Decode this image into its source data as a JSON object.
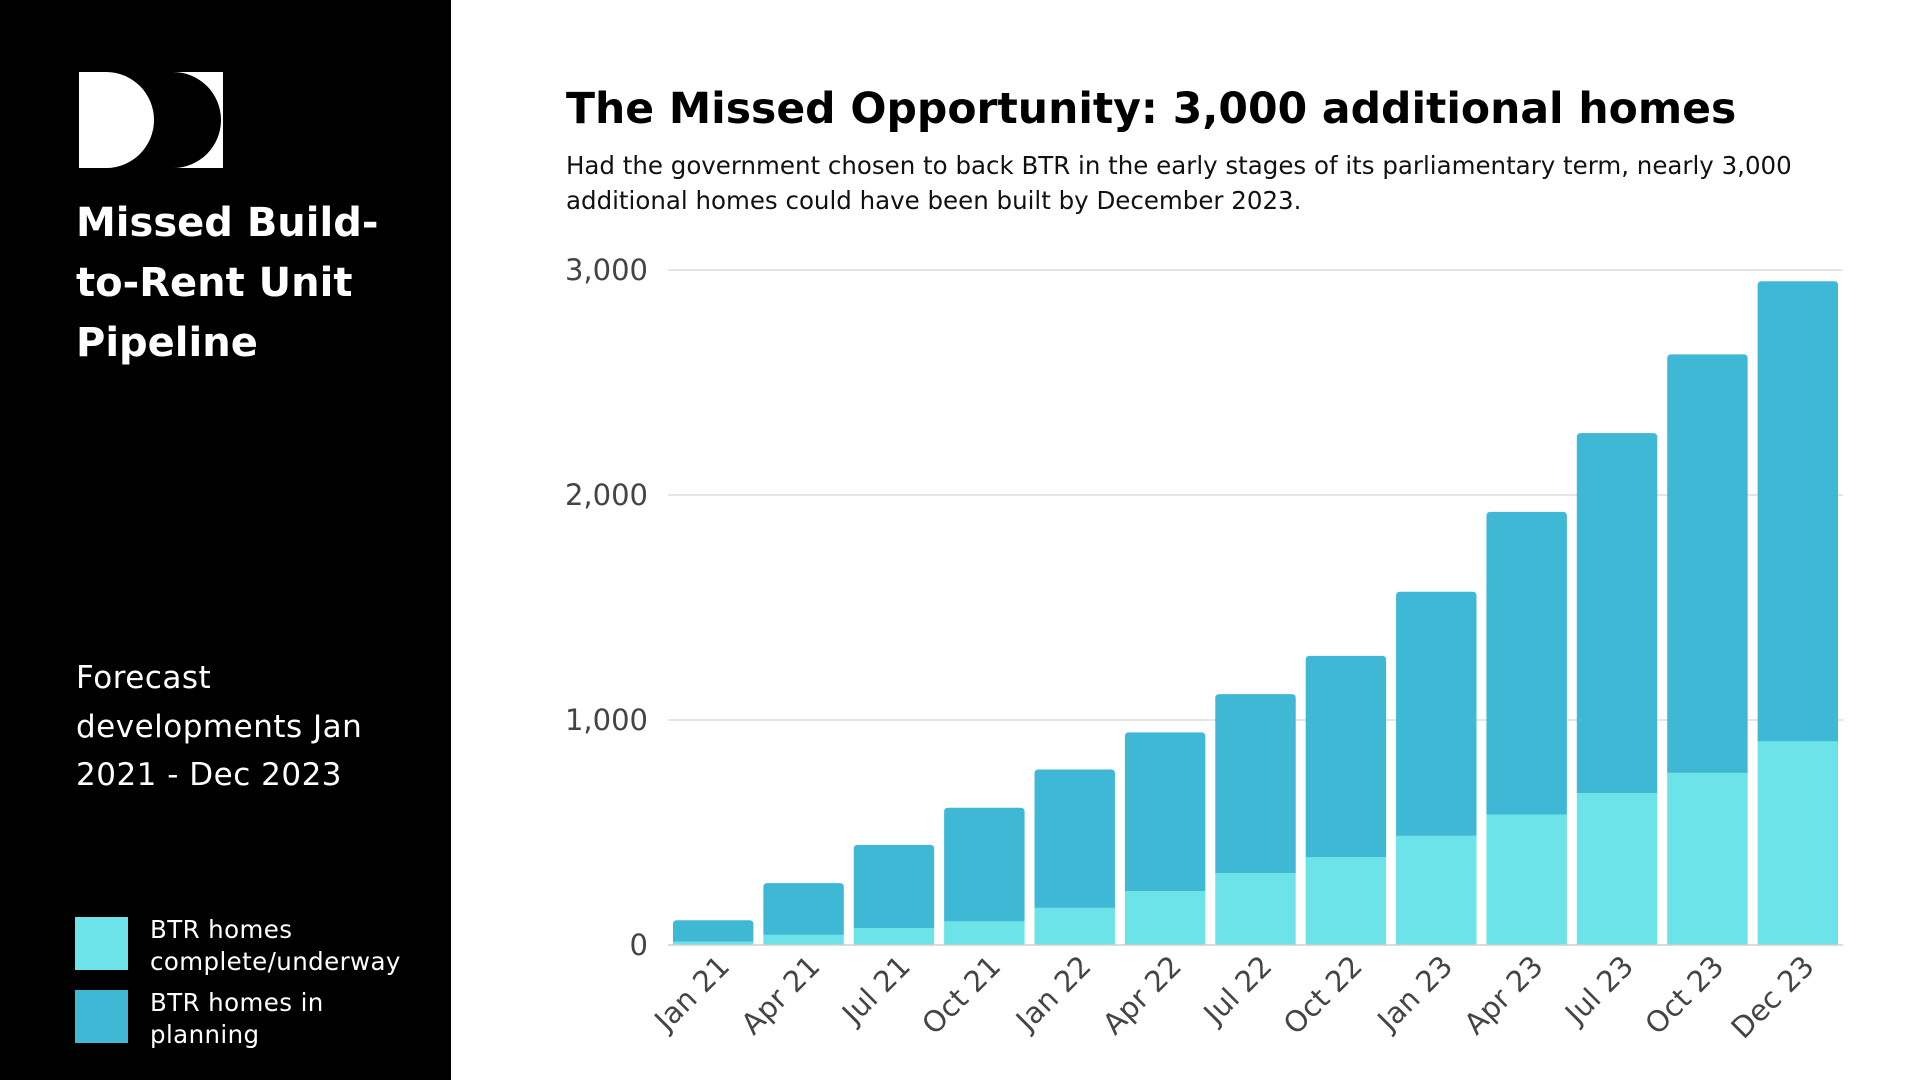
{
  "sidebar": {
    "title": "Missed Build-to-Rent Unit Pipeline",
    "subtitle": "Forecast developments Jan 2021 - Dec 2023",
    "logo_icon": "da-monogram-logo",
    "background": "#000000"
  },
  "legend": [
    {
      "label": "BTR homes complete/underway",
      "color": "#6be3e8"
    },
    {
      "label": "BTR homes in planning",
      "color": "#3fb8d6"
    }
  ],
  "chart_data": {
    "type": "bar",
    "stacked": true,
    "title": "The Missed Opportunity: 3,000 additional homes",
    "subtitle": "Had the government chosen to back BTR in the early stages of its parliamentary term, nearly 3,000 additional homes could have been built by December 2023.",
    "categories": [
      "Jan 21",
      "Apr 21",
      "Jul 21",
      "Oct 21",
      "Jan 22",
      "Apr 22",
      "Jul 22",
      "Oct 22",
      "Jan 23",
      "Apr 23",
      "Jul 23",
      "Oct 23",
      "Dec 23"
    ],
    "series": [
      {
        "name": "BTR homes complete/underway",
        "color": "#6be3e8",
        "values": [
          15,
          45,
          75,
          105,
          165,
          240,
          320,
          390,
          485,
          580,
          675,
          765,
          905
        ]
      },
      {
        "name": "BTR homes in planning",
        "color": "#3fb8d6",
        "values": [
          95,
          230,
          370,
          505,
          615,
          705,
          795,
          895,
          1085,
          1345,
          1600,
          1860,
          2045
        ]
      }
    ],
    "y_ticks": [
      "0",
      "1,000",
      "2,000",
      "3,000"
    ],
    "y_tick_values": [
      0,
      1000,
      2000,
      3000
    ],
    "ylim": [
      0,
      3000
    ],
    "grid": true,
    "xlabel": "",
    "ylabel": ""
  }
}
